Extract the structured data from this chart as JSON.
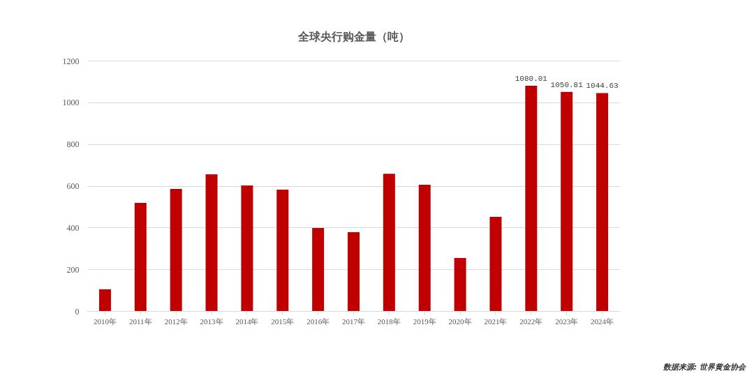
{
  "chart_data": {
    "type": "bar",
    "title": "全球央行购金量（吨）",
    "categories": [
      "2010年",
      "2011年",
      "2012年",
      "2013年",
      "2014年",
      "2015年",
      "2016年",
      "2017年",
      "2018年",
      "2019年",
      "2020年",
      "2021年",
      "2022年",
      "2023年",
      "2024年"
    ],
    "values": [
      104,
      518,
      585,
      655,
      602,
      582,
      398,
      378,
      658,
      605,
      254,
      451,
      1080.01,
      1050.81,
      1044.63
    ],
    "value_labels": [
      null,
      null,
      null,
      null,
      null,
      null,
      null,
      null,
      null,
      null,
      null,
      null,
      "1080.01",
      "1050.81",
      "1044.63"
    ],
    "color": "#c00000",
    "ylim": [
      0,
      1200
    ],
    "yticks": [
      0,
      200,
      400,
      600,
      800,
      1000,
      1200
    ],
    "grid": "y",
    "annotations": [
      "数据来源: 世界黄金协会"
    ]
  }
}
